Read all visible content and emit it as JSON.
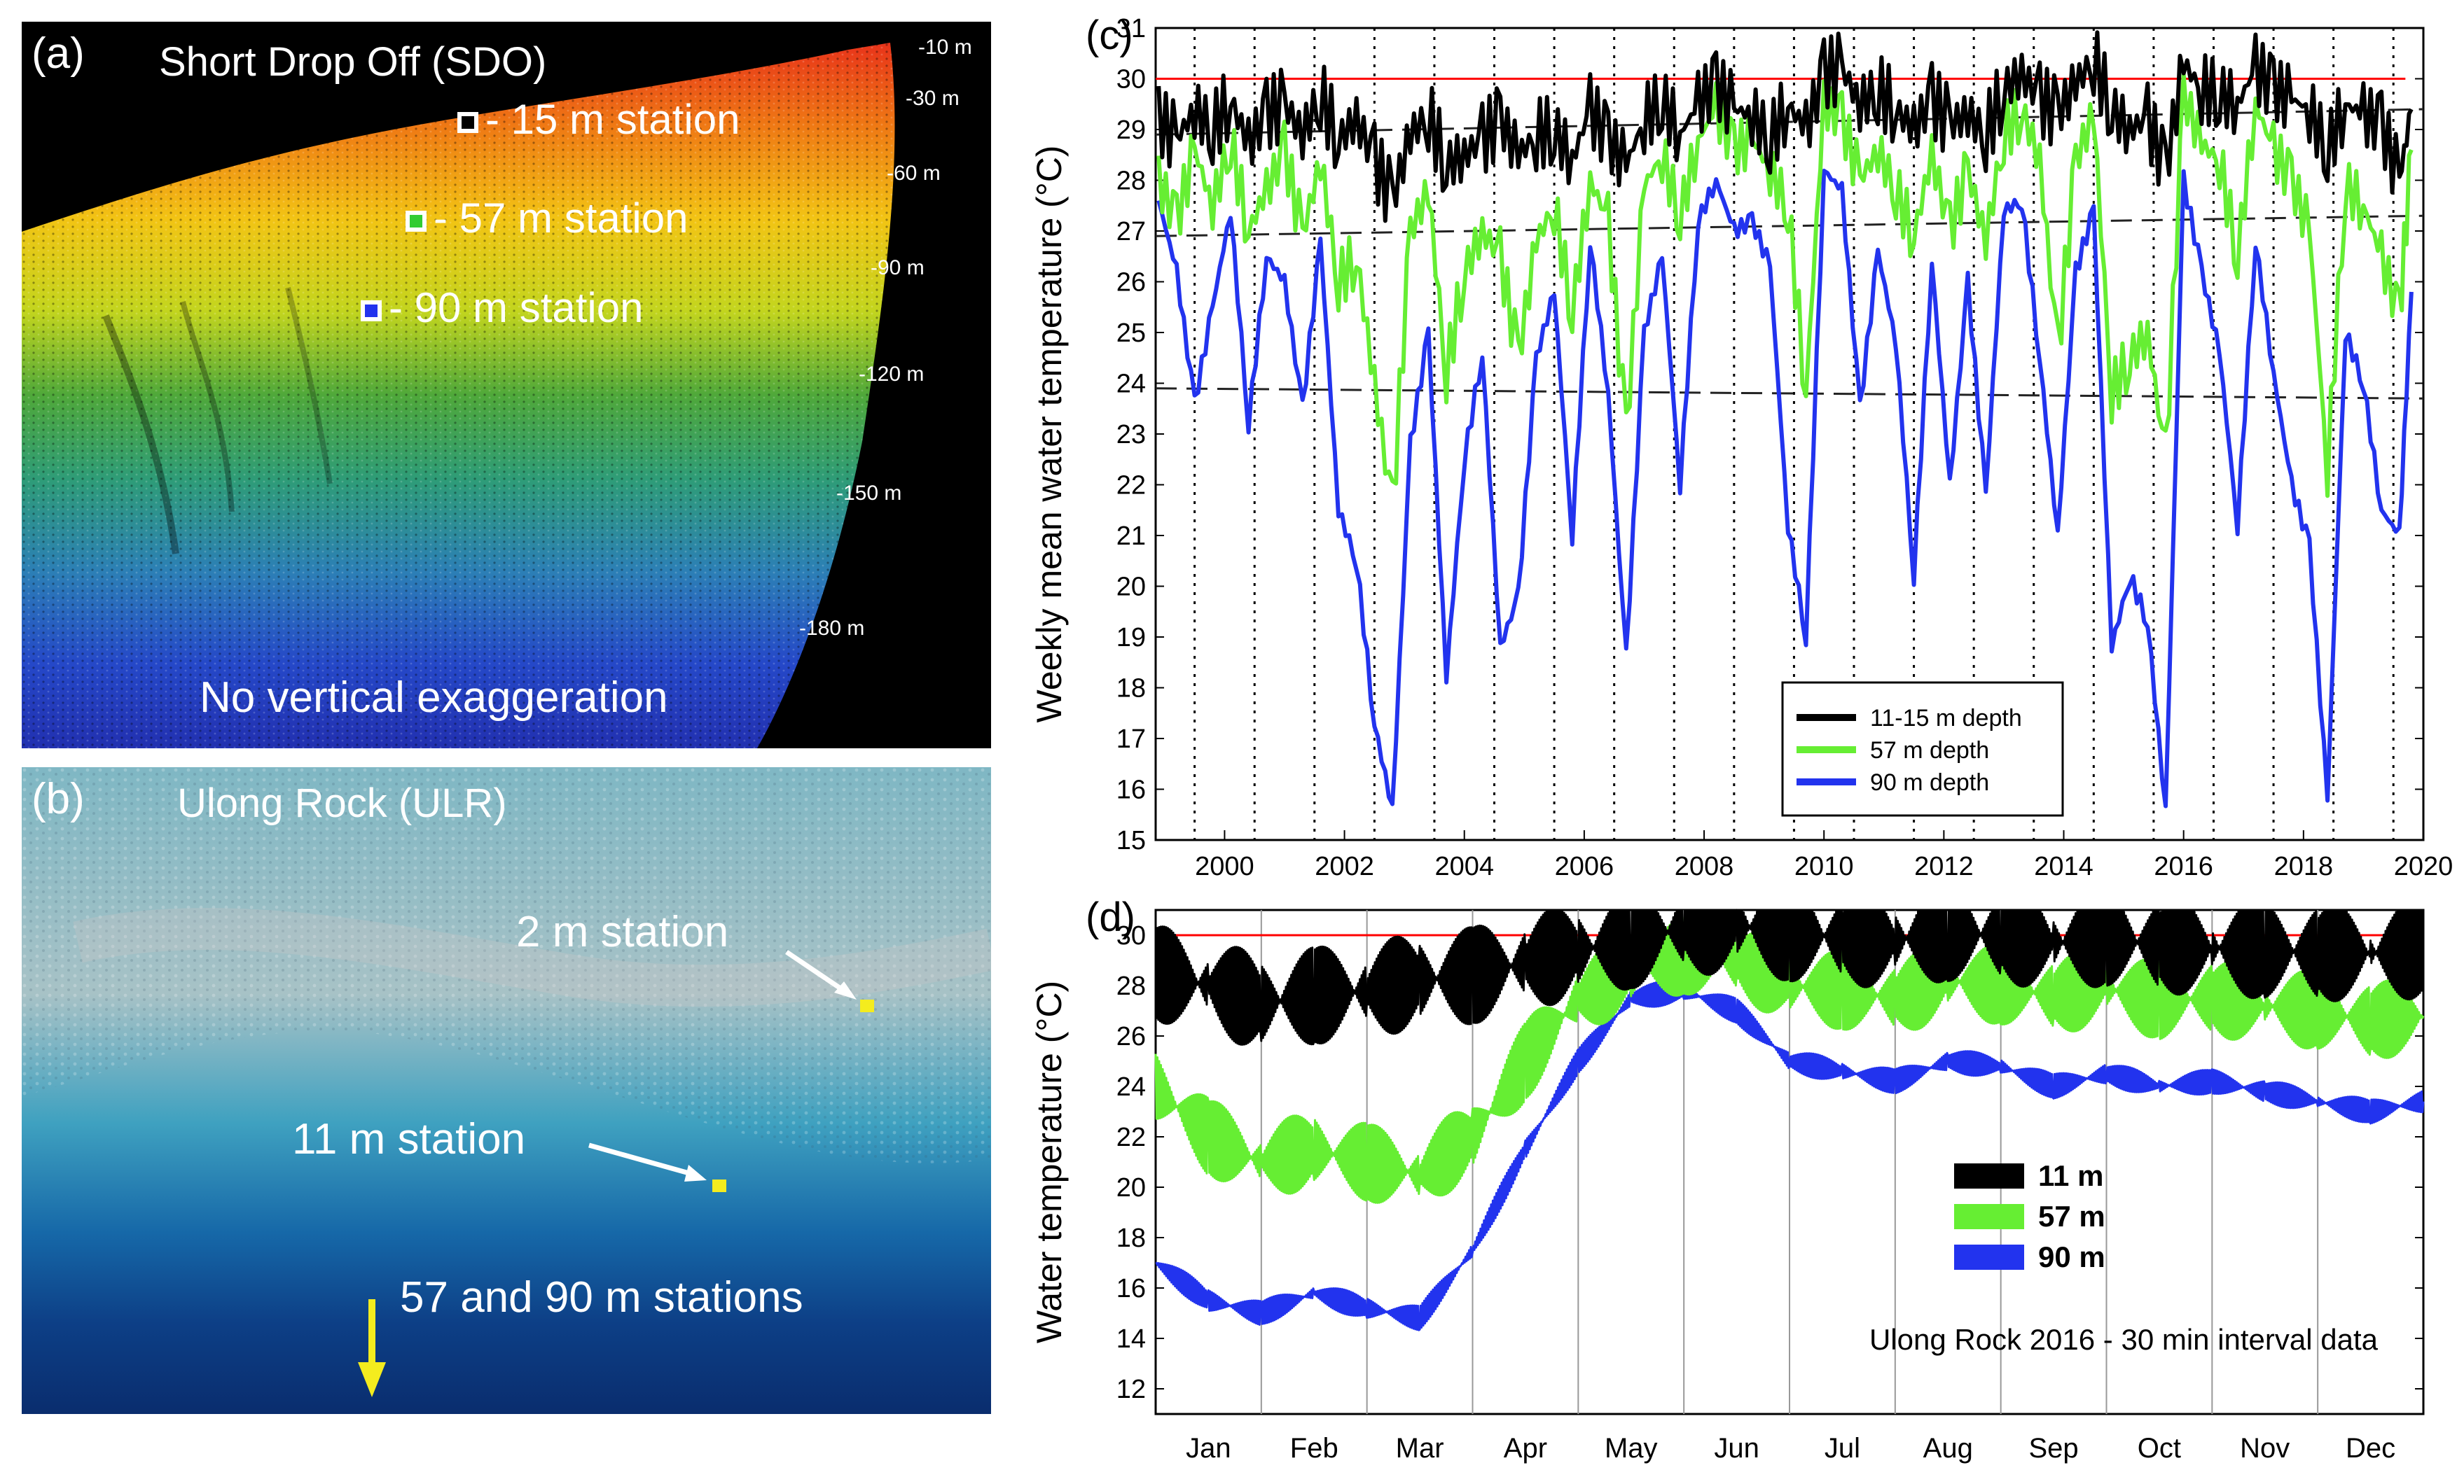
{
  "panel_a": {
    "label": "(a)",
    "title": "Short Drop Off (SDO)",
    "depth_labels": [
      "-10 m",
      "-30 m",
      "-60 m",
      "-90 m",
      "-120 m",
      "-150 m",
      "-180 m"
    ],
    "stations": [
      {
        "text": "- 15 m station",
        "color": "#000000"
      },
      {
        "text": "- 57 m station",
        "color": "#33cc33"
      },
      {
        "text": "- 90 m station",
        "color": "#2233ee"
      }
    ],
    "note": "No vertical exaggeration"
  },
  "panel_b": {
    "label": "(b)",
    "title": "Ulong Rock (ULR)",
    "stations": [
      "2 m station",
      "11 m station",
      "57 and 90 m stations"
    ]
  },
  "chart_data": [
    {
      "type": "line",
      "panel_label": "(c)",
      "ylabel": "Weekly mean water temperature (°C)",
      "xlabel": "",
      "xlim": [
        1998.85,
        2020.0
      ],
      "ylim": [
        15,
        31
      ],
      "x_ticks": [
        "2000",
        "2002",
        "2004",
        "2006",
        "2008",
        "2010",
        "2012",
        "2014",
        "2016",
        "2018",
        "2020"
      ],
      "y_ticks": [
        "15",
        "16",
        "17",
        "18",
        "19",
        "20",
        "21",
        "22",
        "23",
        "24",
        "25",
        "26",
        "27",
        "28",
        "29",
        "30",
        "31"
      ],
      "threshold": {
        "value": 30,
        "color": "#ff0000"
      },
      "trend_lines": [
        {
          "from": [
            1998.85,
            28.9
          ],
          "to": [
            2020.0,
            29.4
          ]
        },
        {
          "from": [
            1998.85,
            26.9
          ],
          "to": [
            2020.0,
            27.3
          ]
        },
        {
          "from": [
            1998.85,
            23.9
          ],
          "to": [
            2020.0,
            23.7
          ]
        }
      ],
      "vertical_dotted_years": [
        1999.5,
        2000.5,
        2001.5,
        2002.5,
        2003.5,
        2004.5,
        2005.5,
        2006.5,
        2007.5,
        2008.5,
        2009.5,
        2010.5,
        2011.5,
        2012.5,
        2013.5,
        2014.5,
        2015.5,
        2016.5,
        2017.5,
        2018.5,
        2019.5
      ],
      "legend": [
        "11-15 m depth",
        "57 m depth",
        "90 m depth"
      ],
      "series": [
        {
          "name": "11-15 m depth",
          "color": "#000000",
          "x": [
            1998.9,
            1999.2,
            1999.5,
            1999.8,
            2000.1,
            2000.4,
            2000.7,
            2001.0,
            2001.3,
            2001.6,
            2001.9,
            2002.2,
            2002.5,
            2002.8,
            2003.1,
            2003.4,
            2003.7,
            2004.0,
            2004.3,
            2004.6,
            2004.9,
            2005.2,
            2005.5,
            2005.8,
            2006.1,
            2006.4,
            2006.7,
            2007.0,
            2007.3,
            2007.6,
            2007.9,
            2008.2,
            2008.5,
            2008.8,
            2009.1,
            2009.4,
            2009.7,
            2010.0,
            2010.3,
            2010.6,
            2010.9,
            2011.2,
            2011.5,
            2011.8,
            2012.1,
            2012.4,
            2012.7,
            2013.0,
            2013.3,
            2013.6,
            2013.9,
            2014.2,
            2014.5,
            2014.8,
            2015.1,
            2015.4,
            2015.7,
            2016.0,
            2016.3,
            2016.6,
            2016.9,
            2017.2,
            2017.5,
            2017.8,
            2018.1,
            2018.4,
            2018.7,
            2019.0,
            2019.3,
            2019.6,
            2019.8
          ],
          "y": [
            29.2,
            28.8,
            29.4,
            29.0,
            29.6,
            28.7,
            29.3,
            29.5,
            28.9,
            29.7,
            28.8,
            29.2,
            28.4,
            27.6,
            28.9,
            29.3,
            28.3,
            28.5,
            28.8,
            29.2,
            28.5,
            28.9,
            29.0,
            28.4,
            29.4,
            28.8,
            28.3,
            29.2,
            29.6,
            28.9,
            29.5,
            29.9,
            29.4,
            29.3,
            28.8,
            29.5,
            29.0,
            30.1,
            30.2,
            29.5,
            29.8,
            29.4,
            29.0,
            29.6,
            29.1,
            29.3,
            28.9,
            29.8,
            30.1,
            29.6,
            29.3,
            29.9,
            30.4,
            29.4,
            29.0,
            29.2,
            28.2,
            30.3,
            29.8,
            29.7,
            29.5,
            30.2,
            29.8,
            29.6,
            29.4,
            28.6,
            29.5,
            29.3,
            29.1,
            28.0,
            29.4
          ]
        },
        {
          "name": "57 m depth",
          "color": "#66ee33",
          "x": [
            1998.9,
            1999.2,
            1999.5,
            1999.8,
            2000.1,
            2000.4,
            2000.7,
            2001.0,
            2001.3,
            2001.6,
            2001.9,
            2002.2,
            2002.5,
            2002.8,
            2003.1,
            2003.4,
            2003.7,
            2004.0,
            2004.3,
            2004.6,
            2004.9,
            2005.2,
            2005.5,
            2005.8,
            2006.1,
            2006.4,
            2006.7,
            2007.0,
            2007.3,
            2007.6,
            2007.9,
            2008.2,
            2008.5,
            2008.8,
            2009.1,
            2009.4,
            2009.7,
            2010.0,
            2010.3,
            2010.6,
            2010.9,
            2011.2,
            2011.5,
            2011.8,
            2012.1,
            2012.4,
            2012.7,
            2013.0,
            2013.3,
            2013.6,
            2013.9,
            2014.2,
            2014.5,
            2014.8,
            2015.1,
            2015.4,
            2015.7,
            2016.0,
            2016.3,
            2016.6,
            2016.9,
            2017.2,
            2017.5,
            2017.8,
            2018.1,
            2018.4,
            2018.7,
            2019.0,
            2019.3,
            2019.6,
            2019.8
          ],
          "y": [
            28.0,
            27.2,
            28.6,
            27.5,
            28.8,
            27.0,
            27.8,
            28.6,
            26.9,
            28.4,
            26.0,
            26.5,
            24.0,
            21.5,
            27.0,
            27.8,
            24.2,
            26.2,
            27.0,
            26.5,
            24.5,
            26.8,
            27.5,
            25.4,
            28.0,
            27.2,
            23.0,
            27.9,
            28.5,
            27.3,
            28.8,
            29.4,
            28.6,
            28.8,
            28.2,
            27.5,
            23.8,
            29.5,
            29.2,
            28.0,
            28.6,
            27.8,
            26.9,
            28.5,
            27.0,
            28.2,
            26.8,
            28.9,
            29.4,
            28.4,
            24.6,
            28.4,
            29.3,
            23.8,
            24.5,
            25.0,
            22.5,
            29.7,
            28.7,
            28.4,
            26.5,
            29.5,
            28.6,
            28.0,
            27.0,
            22.3,
            27.9,
            27.5,
            26.5,
            25.3,
            28.6
          ]
        },
        {
          "name": "90 m depth",
          "color": "#2233ee",
          "x": [
            1998.9,
            1999.2,
            1999.5,
            1999.8,
            2000.1,
            2000.4,
            2000.7,
            2001.0,
            2001.3,
            2001.6,
            2001.9,
            2002.2,
            2002.5,
            2002.8,
            2003.1,
            2003.4,
            2003.7,
            2004.0,
            2004.3,
            2004.6,
            2004.9,
            2005.2,
            2005.5,
            2005.8,
            2006.1,
            2006.4,
            2006.7,
            2007.0,
            2007.3,
            2007.6,
            2007.9,
            2008.2,
            2008.5,
            2008.8,
            2009.1,
            2009.4,
            2009.7,
            2010.0,
            2010.3,
            2010.6,
            2010.9,
            2011.2,
            2011.5,
            2011.8,
            2012.1,
            2012.4,
            2012.7,
            2013.0,
            2013.3,
            2013.6,
            2013.9,
            2014.2,
            2014.5,
            2014.8,
            2015.1,
            2015.4,
            2015.7,
            2016.0,
            2016.3,
            2016.6,
            2016.9,
            2017.2,
            2017.5,
            2017.8,
            2018.1,
            2018.4,
            2018.7,
            2019.0,
            2019.3,
            2019.6,
            2019.8
          ],
          "y": [
            27.6,
            26.2,
            23.6,
            25.5,
            27.4,
            23.2,
            26.5,
            26.0,
            23.5,
            26.8,
            21.5,
            20.5,
            17.3,
            15.6,
            22.8,
            25.0,
            18.2,
            22.5,
            24.6,
            18.8,
            19.8,
            24.5,
            25.8,
            21.0,
            26.8,
            23.8,
            18.6,
            25.0,
            26.5,
            22.0,
            27.2,
            28.0,
            27.0,
            27.2,
            26.3,
            21.2,
            19.0,
            28.2,
            27.8,
            23.5,
            26.6,
            24.8,
            20.2,
            26.4,
            22.0,
            26.0,
            21.8,
            27.4,
            27.6,
            24.5,
            21.0,
            26.2,
            27.4,
            18.8,
            20.2,
            19.3,
            15.6,
            28.0,
            26.2,
            24.6,
            21.2,
            26.8,
            24.2,
            22.0,
            20.8,
            15.8,
            25.0,
            24.0,
            21.5,
            21.0,
            25.8
          ]
        }
      ]
    },
    {
      "type": "line",
      "panel_label": "(d)",
      "ylabel": "Water temperature (°C)",
      "xlabel": "",
      "title_annotation": "Ulong Rock 2016 - 30 min interval data",
      "xlim": [
        0,
        12
      ],
      "ylim": [
        11,
        31
      ],
      "x_ticks": [
        "Jan",
        "Feb",
        "Mar",
        "Apr",
        "May",
        "Jun",
        "Jul",
        "Aug",
        "Sep",
        "Oct",
        "Nov",
        "Dec"
      ],
      "y_ticks": [
        "12",
        "14",
        "16",
        "18",
        "20",
        "22",
        "24",
        "26",
        "28",
        "30"
      ],
      "threshold": {
        "value": 30,
        "color": "#ff0000"
      },
      "legend": [
        "11 m",
        "57 m",
        "90 m"
      ],
      "series": [
        {
          "name": "11 m",
          "color": "#000000",
          "x": [
            0,
            0.5,
            1.0,
            1.5,
            2.0,
            2.5,
            3.0,
            3.5,
            4.0,
            4.5,
            5.0,
            5.5,
            6.0,
            6.5,
            7.0,
            7.5,
            8.0,
            8.5,
            9.0,
            9.5,
            10.0,
            10.5,
            11.0,
            11.5,
            12.0
          ],
          "y": [
            28.5,
            28.0,
            27.3,
            27.6,
            27.8,
            28.2,
            28.4,
            28.9,
            29.4,
            29.8,
            30.3,
            30.4,
            30.1,
            29.9,
            29.8,
            30.1,
            30.0,
            29.7,
            29.9,
            29.6,
            29.5,
            29.4,
            29.3,
            29.3,
            29.4
          ]
        },
        {
          "name": "57 m",
          "color": "#66ee33",
          "x": [
            0,
            0.5,
            1.0,
            1.5,
            2.0,
            2.5,
            3.0,
            3.5,
            4.0,
            4.5,
            5.0,
            5.5,
            6.0,
            6.5,
            7.0,
            7.5,
            8.0,
            8.5,
            9.0,
            9.5,
            10.0,
            10.5,
            11.0,
            11.5,
            12.0
          ],
          "y": [
            24.0,
            22.0,
            21.0,
            21.5,
            21.0,
            20.5,
            22.0,
            25.0,
            27.5,
            28.6,
            29.2,
            29.0,
            28.0,
            27.8,
            27.5,
            28.2,
            28.0,
            27.6,
            27.9,
            27.4,
            27.5,
            27.2,
            27.0,
            26.6,
            26.8
          ]
        },
        {
          "name": "90 m",
          "color": "#2233ee",
          "x": [
            0,
            0.5,
            1.0,
            1.5,
            2.0,
            2.5,
            3.0,
            3.5,
            4.0,
            4.5,
            5.0,
            5.5,
            6.0,
            6.5,
            7.0,
            7.5,
            8.0,
            8.5,
            9.0,
            9.5,
            10.0,
            10.5,
            11.0,
            11.5,
            12.0
          ],
          "y": [
            17.0,
            15.5,
            15.0,
            15.8,
            15.2,
            14.8,
            17.5,
            21.5,
            25.0,
            27.5,
            27.8,
            27.0,
            25.0,
            24.6,
            24.2,
            25.0,
            24.8,
            24.0,
            24.5,
            24.0,
            24.2,
            23.8,
            23.4,
            23.0,
            23.4
          ]
        }
      ]
    }
  ]
}
